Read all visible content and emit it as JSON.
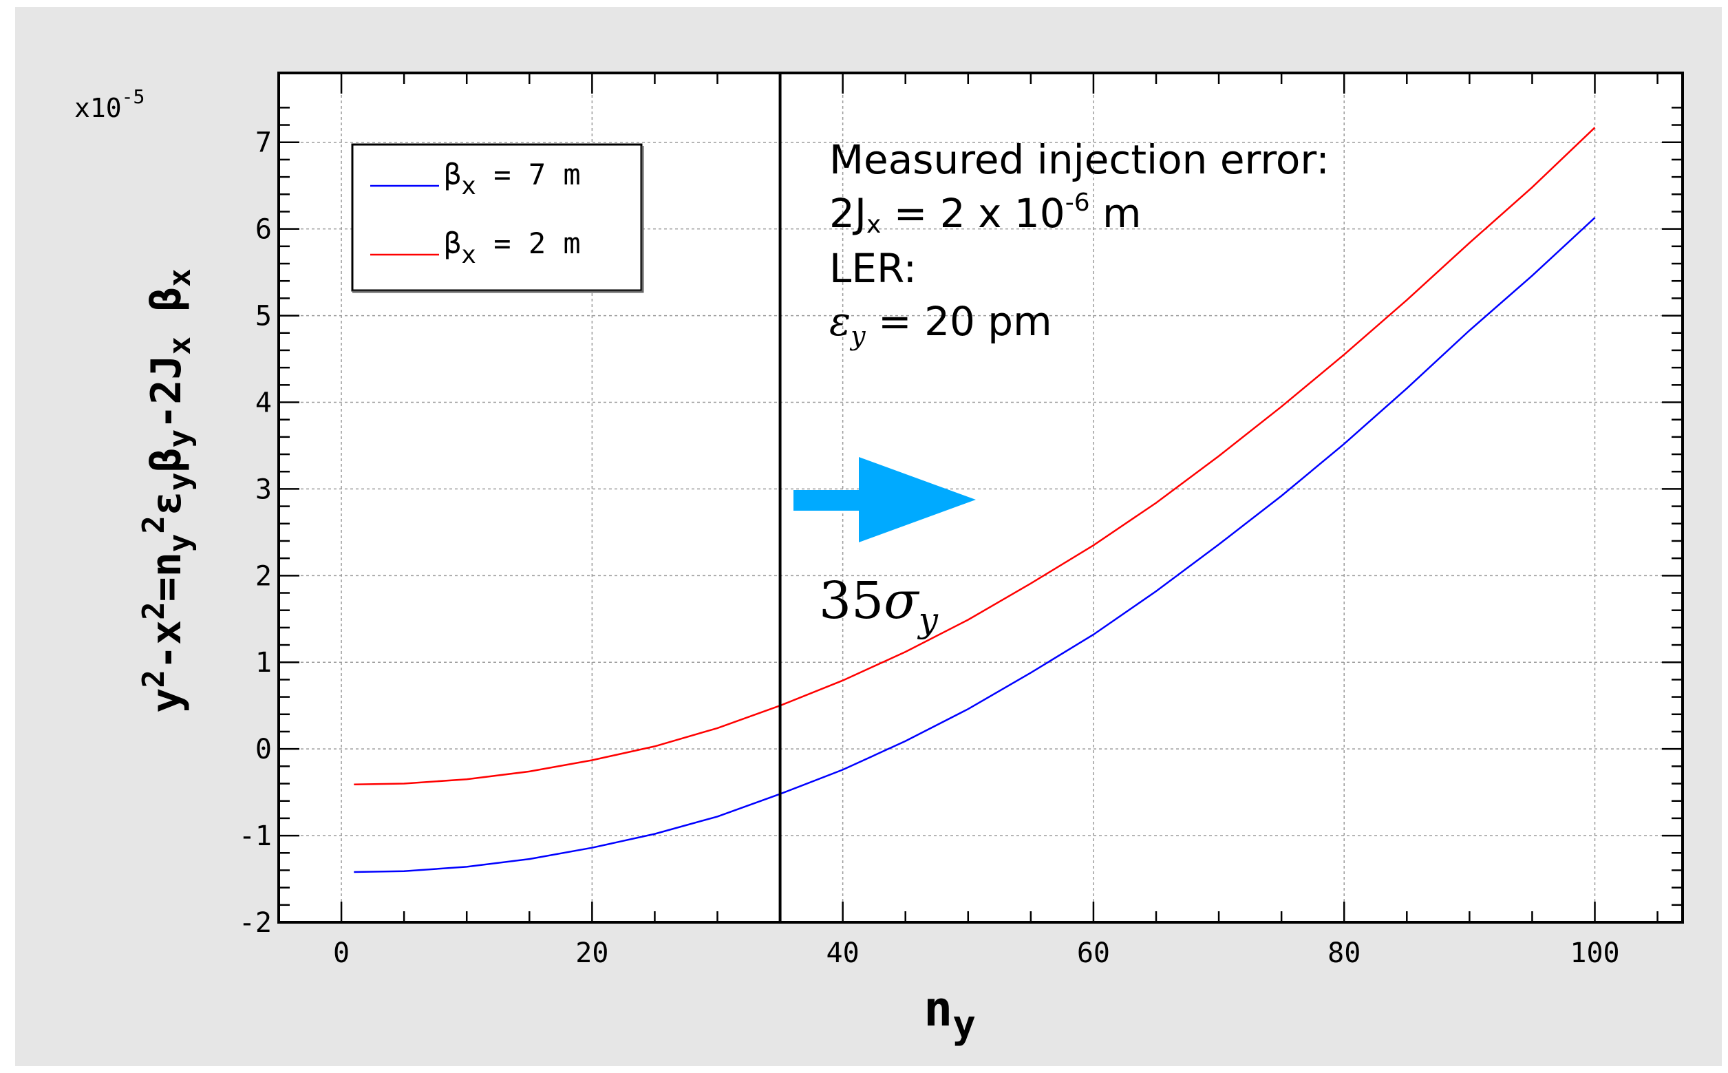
{
  "chart_data": {
    "type": "line",
    "title": "",
    "xlabel": {
      "main": "n",
      "sub": "y"
    },
    "ylabel": {
      "parts": [
        {
          "t": "y",
          "k": "n"
        },
        {
          "t": "2",
          "k": "sup"
        },
        {
          "t": "-x",
          "k": "n"
        },
        {
          "t": "2",
          "k": "sup"
        },
        {
          "t": "=n",
          "k": "n"
        },
        {
          "t": "y",
          "k": "sub"
        },
        {
          "t": "2",
          "k": "sup"
        },
        {
          "t": "ε",
          "k": "n"
        },
        {
          "t": "y",
          "k": "sub"
        },
        {
          "t": "β",
          "k": "n"
        },
        {
          "t": "y",
          "k": "sub"
        },
        {
          "t": "-2J",
          "k": "n"
        },
        {
          "t": "x",
          "k": "sub"
        },
        {
          "t": " β",
          "k": "n"
        },
        {
          "t": "x",
          "k": "sub"
        }
      ]
    },
    "y_multiplier": {
      "base": "x10",
      "exp": "-5"
    },
    "xlim": [
      -5,
      107
    ],
    "ylim": [
      -2,
      7.8
    ],
    "xticks": [
      0,
      20,
      40,
      60,
      80,
      100
    ],
    "yticks": [
      -2,
      -1,
      0,
      1,
      2,
      3,
      4,
      5,
      6,
      7
    ],
    "grid": true,
    "legend_position": "top-left",
    "series": [
      {
        "name": "βx = 7 m",
        "legend": {
          "sym": "β",
          "sub": "x",
          "rest": " = 7 m"
        },
        "color": "#0000ff",
        "x": [
          1,
          5,
          10,
          15,
          20,
          25,
          30,
          35,
          40,
          45,
          50,
          55,
          60,
          65,
          70,
          75,
          80,
          85,
          90,
          95,
          100
        ],
        "y": [
          -1.42,
          -1.41,
          -1.36,
          -1.27,
          -1.14,
          -0.98,
          -0.78,
          -0.52,
          -0.24,
          0.09,
          0.46,
          0.88,
          1.32,
          1.82,
          2.36,
          2.92,
          3.52,
          4.16,
          4.83,
          5.46,
          6.13
        ]
      },
      {
        "name": "βx = 2 m",
        "legend": {
          "sym": "β",
          "sub": "x",
          "rest": " = 2 m"
        },
        "color": "#ff0000",
        "x": [
          1,
          5,
          10,
          15,
          20,
          25,
          30,
          35,
          40,
          45,
          50,
          55,
          60,
          65,
          70,
          75,
          80,
          85,
          90,
          95,
          100
        ],
        "y": [
          -0.41,
          -0.4,
          -0.35,
          -0.26,
          -0.13,
          0.03,
          0.24,
          0.5,
          0.79,
          1.12,
          1.49,
          1.91,
          2.35,
          2.84,
          3.38,
          3.95,
          4.55,
          5.18,
          5.84,
          6.48,
          7.17
        ]
      }
    ],
    "vline": {
      "x": 35,
      "color": "#000000"
    },
    "annotations": {
      "line1": "Measured injection error:",
      "line2": {
        "pre": "2J",
        "sub": "x",
        "mid": " = 2 x 10",
        "sup": "-6",
        "post": " m"
      },
      "line3": "LER:",
      "line4": {
        "sym": "ε",
        "sub": "y",
        "rest": " = 20 pm"
      },
      "sigma": {
        "num": "35",
        "sym": "σ",
        "sub": "y"
      },
      "arrow_color": "#00aaff"
    }
  }
}
